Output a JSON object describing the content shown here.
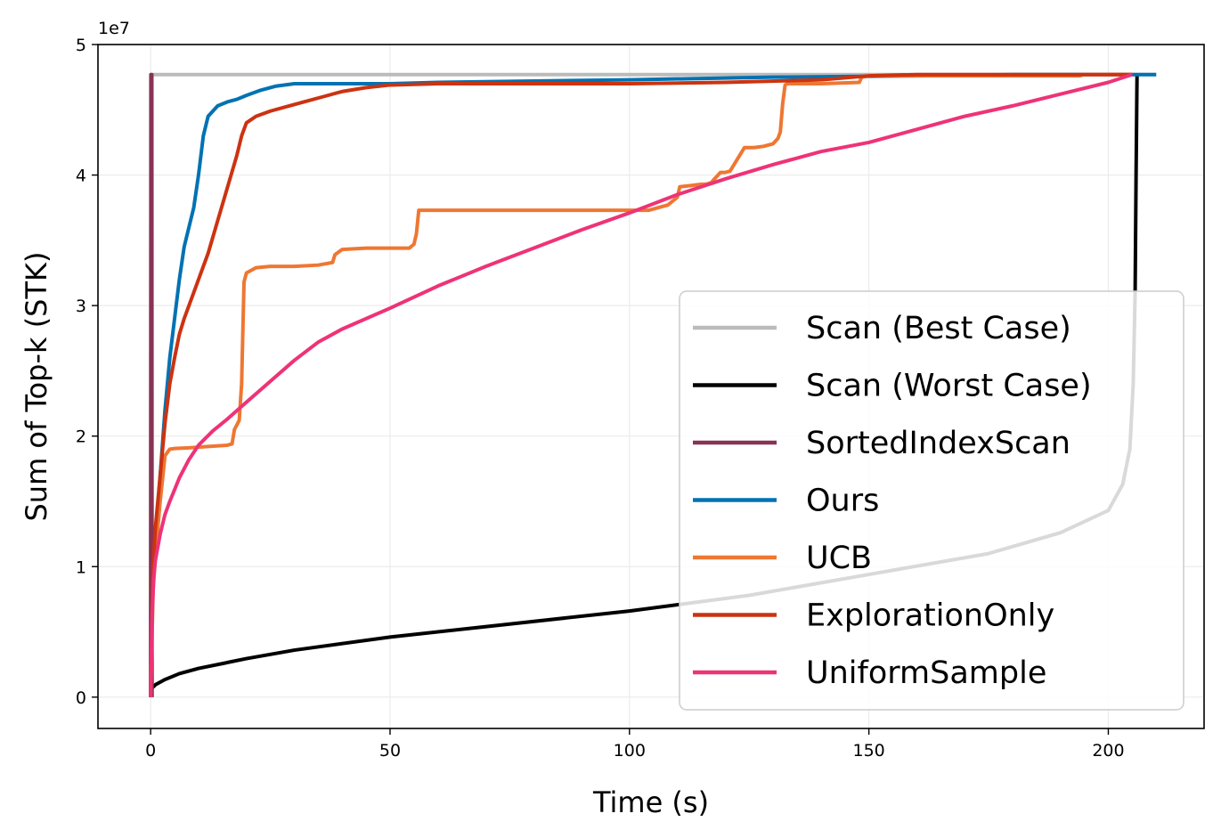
{
  "chart_data": {
    "type": "line",
    "xlabel": "Time (s)",
    "ylabel": "Sum of Top-k (STK)",
    "y_offset_label": "1e7",
    "xlim": [
      -11,
      220
    ],
    "ylim": [
      -2.4,
      50
    ],
    "y_scale_exponent": 7,
    "xticks": [
      0,
      50,
      100,
      150,
      200
    ],
    "yticks": [
      0,
      1,
      2,
      3,
      4,
      5
    ],
    "grid": true,
    "legend_position": "lower-right",
    "series": [
      {
        "name": "Scan (Best Case)",
        "color": "#bbbbbb",
        "x": [
          0,
          0.1,
          0.3,
          210
        ],
        "y": [
          0,
          47.7,
          47.7,
          47.7
        ]
      },
      {
        "name": "Scan (Worst Case)",
        "color": "#000000",
        "x": [
          0,
          0.3,
          1,
          3,
          6,
          10,
          20,
          30,
          50,
          75,
          100,
          125,
          150,
          175,
          190,
          200,
          203,
          204.5,
          205.2,
          205.6,
          205.8,
          206
        ],
        "y": [
          0,
          0.7,
          0.95,
          1.35,
          1.8,
          2.2,
          2.95,
          3.6,
          4.6,
          5.6,
          6.6,
          7.8,
          9.4,
          11.0,
          12.6,
          14.3,
          16.3,
          19,
          24,
          31,
          40,
          47.7
        ]
      },
      {
        "name": "SortedIndexScan",
        "color": "#883355",
        "x": [
          0,
          0.02,
          0.05,
          0.25,
          0.3
        ],
        "y": [
          0,
          20,
          47.7,
          47.7,
          0
        ]
      },
      {
        "name": "Ours",
        "color": "#0072b2",
        "x": [
          0,
          0.5,
          1,
          2,
          3,
          4,
          5,
          6,
          7,
          8,
          9,
          10,
          11,
          12,
          14,
          16,
          18,
          20,
          23,
          26,
          30,
          35,
          40,
          50,
          60,
          80,
          100,
          130,
          160,
          180,
          200,
          210
        ],
        "y": [
          0,
          9,
          12,
          17,
          22,
          26,
          29,
          32,
          34.5,
          36,
          37.5,
          40,
          43,
          44.5,
          45.3,
          45.6,
          45.8,
          46.1,
          46.5,
          46.8,
          47.0,
          47.0,
          47.0,
          47.0,
          47.1,
          47.2,
          47.3,
          47.5,
          47.6,
          47.7,
          47.7,
          47.7
        ]
      },
      {
        "name": "UCB",
        "color": "#ee7733",
        "x": [
          0,
          0.5,
          1,
          2,
          3,
          4,
          5,
          8,
          12,
          16,
          17,
          17.5,
          18.5,
          19,
          19.5,
          20,
          22,
          25,
          30,
          35,
          38,
          38.5,
          40,
          45,
          50,
          54,
          55,
          55.5,
          56,
          60,
          70,
          80,
          90,
          100,
          103,
          104,
          105,
          106,
          107,
          108,
          109,
          110,
          110.5,
          113,
          115,
          116,
          117,
          119,
          120,
          121,
          124,
          126,
          128,
          130,
          131,
          131.5,
          132,
          132.5,
          133,
          135,
          140,
          148,
          148.5,
          150,
          160,
          170,
          180,
          190,
          193,
          194,
          195,
          200,
          205
        ],
        "y": [
          0,
          8,
          11,
          15,
          18.5,
          19,
          19.05,
          19.1,
          19.2,
          19.3,
          19.4,
          20.5,
          21.2,
          24,
          31.8,
          32.5,
          32.9,
          33.0,
          33.0,
          33.1,
          33.3,
          33.9,
          34.3,
          34.4,
          34.4,
          34.4,
          34.7,
          35.5,
          37.3,
          37.3,
          37.3,
          37.3,
          37.3,
          37.3,
          37.3,
          37.3,
          37.4,
          37.5,
          37.6,
          37.7,
          38.0,
          38.3,
          39.1,
          39.2,
          39.3,
          39.3,
          39.4,
          40.2,
          40.2,
          40.3,
          42.1,
          42.1,
          42.2,
          42.4,
          42.8,
          43.3,
          45.5,
          46.9,
          47.0,
          47.0,
          47.0,
          47.1,
          47.5,
          47.6,
          47.6,
          47.6,
          47.6,
          47.6,
          47.6,
          47.6,
          47.7,
          47.7,
          47.7
        ]
      },
      {
        "name": "ExplorationOnly",
        "color": "#cc3311",
        "x": [
          0,
          0.5,
          1,
          2,
          3,
          4,
          5,
          6,
          7,
          8,
          10,
          12,
          14,
          16,
          18,
          19,
          20,
          22,
          25,
          28,
          32,
          36,
          40,
          45,
          50,
          55,
          60,
          80,
          100,
          120,
          140,
          150,
          160,
          180,
          200,
          205
        ],
        "y": [
          0,
          10,
          13,
          17,
          21,
          24,
          26,
          27.8,
          29,
          30,
          32,
          34,
          36.5,
          39,
          41.5,
          43,
          44,
          44.5,
          44.9,
          45.2,
          45.6,
          46.0,
          46.4,
          46.7,
          46.9,
          46.95,
          47.0,
          47.0,
          47.0,
          47.1,
          47.3,
          47.6,
          47.7,
          47.7,
          47.7,
          47.7
        ]
      },
      {
        "name": "UniformSample",
        "color": "#ee3377",
        "x": [
          0,
          0.3,
          0.6,
          1,
          2,
          3,
          4,
          6,
          8,
          10,
          13,
          16,
          20,
          25,
          30,
          35,
          40,
          50,
          60,
          70,
          80,
          90,
          100,
          110,
          120,
          130,
          140,
          150,
          160,
          170,
          180,
          190,
          200,
          205
        ],
        "y": [
          0,
          6,
          9,
          10.5,
          12.5,
          14,
          15,
          16.8,
          18.2,
          19.3,
          20.4,
          21.3,
          22.6,
          24.2,
          25.8,
          27.2,
          28.2,
          29.8,
          31.5,
          33.0,
          34.4,
          35.8,
          37.1,
          38.5,
          39.7,
          40.8,
          41.8,
          42.5,
          43.5,
          44.5,
          45.3,
          46.2,
          47.1,
          47.7
        ]
      }
    ]
  }
}
